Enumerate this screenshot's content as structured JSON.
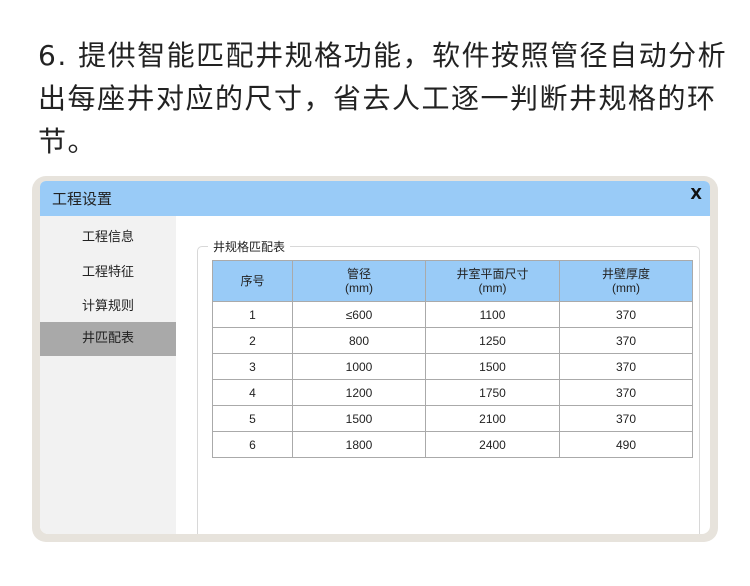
{
  "heading": "6. 提供智能匹配井规格功能，软件按照管径自动分析出每座井对应的尺寸，省去人工逐一判断井规格的环节。",
  "window": {
    "title": "工程设置",
    "close_label": "X"
  },
  "sidebar": {
    "items": [
      {
        "label": "工程信息"
      },
      {
        "label": "工程特征"
      },
      {
        "label": "计算规则"
      },
      {
        "label": "井匹配表",
        "active": true
      }
    ]
  },
  "group": {
    "label": "井规格匹配表"
  },
  "table": {
    "headers": [
      {
        "name": "序号",
        "unit": ""
      },
      {
        "name": "管径",
        "unit": "(mm)"
      },
      {
        "name": "井室平面尺寸",
        "unit": "(mm)"
      },
      {
        "name": "井壁厚度",
        "unit": "(mm)"
      }
    ],
    "rows": [
      [
        "1",
        "≤600",
        "1100",
        "370"
      ],
      [
        "2",
        "800",
        "1250",
        "370"
      ],
      [
        "3",
        "1000",
        "1500",
        "370"
      ],
      [
        "4",
        "1200",
        "1750",
        "370"
      ],
      [
        "5",
        "1500",
        "2100",
        "370"
      ],
      [
        "6",
        "1800",
        "2400",
        "490"
      ]
    ]
  },
  "colors": {
    "titlebar": "#99cbf7",
    "active_item": "#a9a9a9",
    "frame": "#e7e3dc"
  }
}
